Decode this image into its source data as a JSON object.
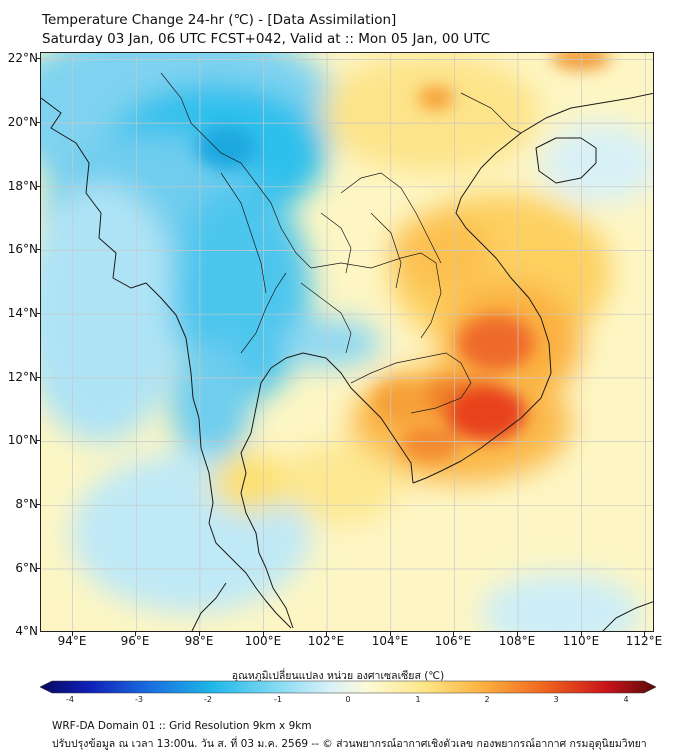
{
  "title": {
    "line1": "Temperature Change 24-hr (℃) - [Data Assimilation]",
    "line2": "Saturday 03 Jan, 06 UTC FCST+042, Valid at :: Mon 05 Jan, 00 UTC"
  },
  "axes": {
    "lat_labels": [
      "22°N",
      "20°N",
      "18°N",
      "16°N",
      "14°N",
      "12°N",
      "10°N",
      "8°N",
      "6°N",
      "4°N"
    ],
    "lon_labels": [
      "94°E",
      "96°E",
      "98°E",
      "100°E",
      "102°E",
      "104°E",
      "106°E",
      "108°E",
      "110°E",
      "112°E"
    ]
  },
  "colorbar": {
    "title": "อุณหภูมิเปลี่ยนแปลง หน่วย องศาเซลเซียส (℃)",
    "tick_labels": [
      "-4",
      "-3",
      "-2",
      "-1",
      "0",
      "1",
      "2",
      "3",
      "4"
    ]
  },
  "footer": {
    "line1": "WRF-DA Domain 01 :: Grid Resolution 9km x 9km",
    "line2": "ปรับปรุงข้อมูล ณ เวลา 13:00น. วัน ส. ที่ 03 ม.ค. 2569 -- © ส่วนพยากรณ์อากาศเชิงตัวเลข กองพยากรณ์อากาศ กรมอุตุนิยมวิทยา"
  },
  "colors": {
    "cold_strong": "#1fb8e8",
    "cold_light": "#bfe9f7",
    "neutral": "#fdf8c8",
    "warm_light": "#fde88a",
    "warm": "#fbb040",
    "hot": "#e8431f",
    "coastline": "#1a1a1a",
    "grid": "#c8c8c8"
  },
  "map_data": {
    "variable": "24-hr temperature change",
    "units": "°C",
    "lon_range": [
      93,
      112.3
    ],
    "lat_range": [
      4,
      22.2
    ],
    "features": [
      {
        "name": "cooling-myanmar-north",
        "lon": 98.5,
        "lat": 19.5,
        "value": -2.5
      },
      {
        "name": "cooling-bay-of-bengal",
        "lon": 95.0,
        "lat": 17.0,
        "value": -1.5
      },
      {
        "name": "cooling-gulf-of-thailand-north",
        "lon": 101.0,
        "lat": 12.5,
        "value": -1.0
      },
      {
        "name": "warming-cambodia-east",
        "lon": 107.0,
        "lat": 13.3,
        "value": 3.0
      },
      {
        "name": "warming-mekong-delta",
        "lon": 107.0,
        "lat": 10.8,
        "value": 3.5
      },
      {
        "name": "warming-vietnam-south",
        "lon": 106.0,
        "lat": 9.8,
        "value": 2.5
      },
      {
        "name": "warming-laos-central",
        "lon": 105.5,
        "lat": 16.5,
        "value": 2.0
      },
      {
        "name": "warming-north-vietnam",
        "lon": 105.8,
        "lat": 20.5,
        "value": 1.8
      }
    ]
  }
}
